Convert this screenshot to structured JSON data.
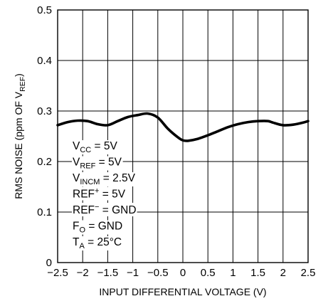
{
  "chart_data": {
    "type": "line",
    "title": "",
    "xlabel": "INPUT DIFFERENTIAL VOLTAGE (V)",
    "ylabel": {
      "main": "RMS NOISE (ppm OF V",
      "sub": "REF",
      "end": ")"
    },
    "xlim": [
      -2.5,
      2.5
    ],
    "ylim": [
      0,
      0.5
    ],
    "grid": true,
    "x_ticks": [
      "−2.5",
      "−2",
      "−1.5",
      "−1",
      "−0.5",
      "0",
      "0.5",
      "1",
      "1.5",
      "2",
      "2.5"
    ],
    "x_tick_values": [
      -2.5,
      -2,
      -1.5,
      -1,
      -0.5,
      0,
      0.5,
      1,
      1.5,
      2,
      2.5
    ],
    "y_ticks": [
      "0",
      "0.1",
      "0.2",
      "0.3",
      "0.4",
      "0.5"
    ],
    "y_tick_values": [
      0,
      0.1,
      0.2,
      0.3,
      0.4,
      0.5
    ],
    "series": [
      {
        "x": [
          -2.5,
          -2.3,
          -2.1,
          -1.9,
          -1.7,
          -1.5,
          -1.3,
          -1.1,
          -0.9,
          -0.7,
          -0.5,
          -0.3,
          -0.1,
          0.0,
          0.1,
          0.3,
          0.5,
          0.7,
          0.9,
          1.1,
          1.3,
          1.5,
          1.7,
          1.8,
          2.0,
          2.2,
          2.4,
          2.5
        ],
        "y": [
          0.272,
          0.278,
          0.281,
          0.28,
          0.274,
          0.272,
          0.28,
          0.288,
          0.292,
          0.295,
          0.287,
          0.265,
          0.248,
          0.242,
          0.241,
          0.245,
          0.252,
          0.26,
          0.268,
          0.274,
          0.278,
          0.28,
          0.28,
          0.277,
          0.272,
          0.273,
          0.277,
          0.28
        ]
      }
    ],
    "annotations": [
      {
        "main": "V",
        "sub": "CC",
        "sup": "",
        "rest": " = 5V"
      },
      {
        "main": "V",
        "sub": "REF",
        "sup": "",
        "rest": " = 5V"
      },
      {
        "main": "V",
        "sub": "INCM",
        "sup": "",
        "rest": " = 2.5V"
      },
      {
        "main": "REF",
        "sub": "",
        "sup": "+",
        "rest": " = 5V"
      },
      {
        "main": "REF",
        "sub": "",
        "sup": "−",
        "rest": " = GND"
      },
      {
        "main": "F",
        "sub": "O",
        "sup": "",
        "rest": " = GND"
      },
      {
        "main": "T",
        "sub": "A",
        "sup": "",
        "rest": " = 25°C"
      }
    ]
  }
}
